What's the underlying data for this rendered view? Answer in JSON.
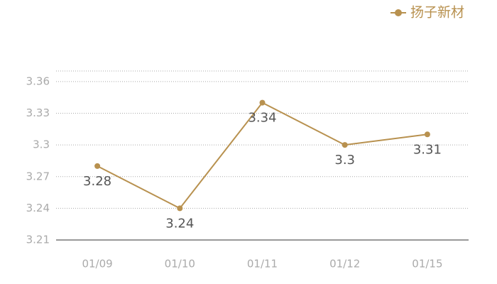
{
  "chart_data": {
    "type": "line",
    "categories": [
      "01/09",
      "01/10",
      "01/11",
      "01/12",
      "01/15"
    ],
    "series": [
      {
        "name": "扬子新材",
        "color": "#b8914f",
        "values": [
          3.28,
          3.24,
          3.34,
          3.3,
          3.31
        ]
      }
    ],
    "ylim": [
      3.21,
      3.37
    ],
    "yticks": [
      3.21,
      3.24,
      3.27,
      3.3,
      3.33,
      3.36
    ],
    "grid": true,
    "legend": "top-right"
  }
}
